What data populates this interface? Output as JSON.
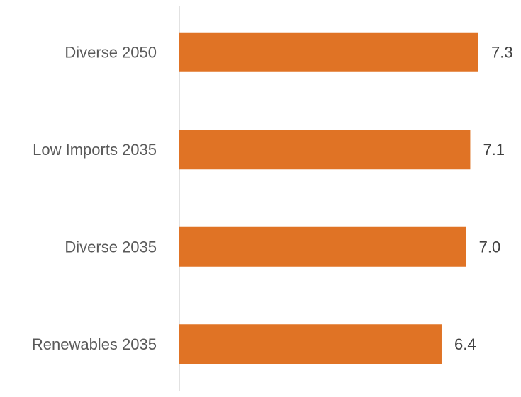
{
  "chart_data": {
    "type": "bar",
    "orientation": "horizontal",
    "title": "",
    "xlabel": "",
    "ylabel": "",
    "categories": [
      "Diverse 2050",
      "Low Imports 2035",
      "Diverse 2035",
      "Renewables 2035"
    ],
    "values": [
      7.3,
      7.1,
      7.0,
      6.4
    ],
    "value_labels": [
      "7.3",
      "7.1",
      "7.0",
      "6.4"
    ],
    "xlim": [
      0,
      7.3
    ],
    "grid": false,
    "legend": "none",
    "bar_color": "#E07325",
    "axis_color": "#D9D9D9"
  }
}
